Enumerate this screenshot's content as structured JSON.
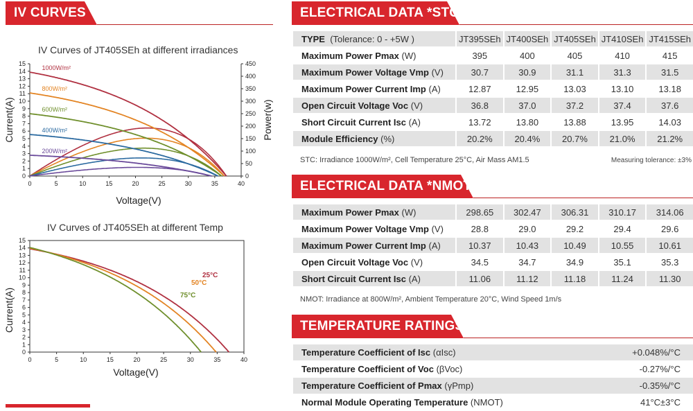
{
  "sections": {
    "iv_curves": "IV CURVES",
    "stc": "ELECTRICAL DATA *STC",
    "nmot": "ELECTRICAL DATA *NMOT",
    "temp": "TEMPERATURE RATINGS"
  },
  "colors": {
    "banner": "#d8262d",
    "row_shade": "#e2e2e2",
    "c1000": "#b03040",
    "c800": "#e38423",
    "c600": "#6f8f2c",
    "c400": "#2b6aa0",
    "c200": "#6a4a9a",
    "t25": "#b03040",
    "t50": "#e38423",
    "t75": "#6f8f2c"
  },
  "chart_data": [
    {
      "type": "line",
      "title": "IV Curves of JT405SEh at different irradiances",
      "xlabel": "Voltage(V)",
      "ylabel": "Current(A)",
      "y2label": "Power(w)",
      "xlim": [
        0,
        40
      ],
      "ylim": [
        0,
        15
      ],
      "y2lim": [
        0,
        450
      ],
      "xticks": [
        "0",
        "5",
        "10",
        "15",
        "20",
        "25",
        "30",
        "35",
        "40"
      ],
      "yticks": [
        "0",
        "1",
        "2",
        "3",
        "4",
        "5",
        "6",
        "7",
        "8",
        "9",
        "10",
        "11",
        "12",
        "13",
        "14",
        "15"
      ],
      "y2ticks": [
        "0",
        "50",
        "100",
        "150",
        "200",
        "250",
        "300",
        "350",
        "400",
        "450"
      ],
      "series": [
        {
          "name": "1000W/m²",
          "isc": 13.88,
          "voc": 37.2,
          "vmp": 31.1,
          "imp": 13.03,
          "pmax": 405,
          "color_key": "c1000"
        },
        {
          "name": "800W/m²",
          "isc": 11.1,
          "voc": 36.8,
          "vmp": 30.9,
          "imp": 10.45,
          "pmax": 323,
          "color_key": "c800"
        },
        {
          "name": "600W/m²",
          "isc": 8.33,
          "voc": 36.3,
          "vmp": 30.6,
          "imp": 7.85,
          "pmax": 240,
          "color_key": "c600"
        },
        {
          "name": "400W/m²",
          "isc": 5.55,
          "voc": 35.6,
          "vmp": 30.2,
          "imp": 5.23,
          "pmax": 158,
          "color_key": "c400"
        },
        {
          "name": "200W/m²",
          "isc": 2.78,
          "voc": 34.4,
          "vmp": 29.3,
          "imp": 2.62,
          "pmax": 77,
          "color_key": "c200"
        }
      ]
    },
    {
      "type": "line",
      "title": "IV Curves of JT405SEh at different Temp",
      "xlabel": "Voltage(V)",
      "ylabel": "Current(A)",
      "xlim": [
        0,
        40
      ],
      "ylim": [
        0,
        15
      ],
      "xticks": [
        "0",
        "5",
        "10",
        "15",
        "20",
        "25",
        "30",
        "35",
        "40"
      ],
      "yticks": [
        "0",
        "1",
        "2",
        "3",
        "4",
        "5",
        "6",
        "7",
        "8",
        "9",
        "10",
        "11",
        "12",
        "13",
        "14",
        "15"
      ],
      "series": [
        {
          "name": "25°C",
          "isc": 13.88,
          "voc": 37.2,
          "knee": 31.0,
          "color_key": "t25"
        },
        {
          "name": "50°C",
          "isc": 13.97,
          "voc": 34.8,
          "knee": 28.5,
          "color_key": "t50"
        },
        {
          "name": "75°C",
          "isc": 14.06,
          "voc": 32.0,
          "knee": 25.5,
          "color_key": "t75"
        }
      ]
    }
  ],
  "stc_table": {
    "header": {
      "label": "TYPE",
      "unit": "(Tolerance: 0 - +5W )",
      "models": [
        "JT395SEh",
        "JT400SEh",
        "JT405SEh",
        "JT410SEh",
        "JT415SEh"
      ]
    },
    "rows": [
      {
        "label": "Maximum Power Pmax",
        "unit": "(W)",
        "values": [
          "395",
          "400",
          "405",
          "410",
          "415"
        ]
      },
      {
        "label": "Maximum Power Voltage Vmp",
        "unit": "(V)",
        "values": [
          "30.7",
          "30.9",
          "31.1",
          "31.3",
          "31.5"
        ]
      },
      {
        "label": "Maximum Power Current Imp",
        "unit": "(A)",
        "values": [
          "12.87",
          "12.95",
          "13.03",
          "13.10",
          "13.18"
        ]
      },
      {
        "label": "Open Circuit Voltage Voc",
        "unit": "(V)",
        "values": [
          "36.8",
          "37.0",
          "37.2",
          "37.4",
          "37.6"
        ]
      },
      {
        "label": "Short Circuit Current Isc",
        "unit": "(A)",
        "values": [
          "13.72",
          "13.80",
          "13.88",
          "13.95",
          "14.03"
        ]
      },
      {
        "label": "Module Efficiency",
        "unit": "(%)",
        "values": [
          "20.2%",
          "20.4%",
          "20.7%",
          "21.0%",
          "21.2%"
        ]
      }
    ],
    "note": "STC: Irradiance 1000W/m², Cell Temperature 25°C, Air Mass AM1.5",
    "note_right": "Measuring tolerance: ±3%"
  },
  "nmot_table": {
    "rows": [
      {
        "label": "Maximum Power  Pmax",
        "unit": "(W)",
        "values": [
          "298.65",
          "302.47",
          "306.31",
          "310.17",
          "314.06"
        ]
      },
      {
        "label": "Maximum Power Voltage  Vmp",
        "unit": "(V)",
        "values": [
          "28.8",
          "29.0",
          "29.2",
          "29.4",
          "29.6"
        ]
      },
      {
        "label": "Maximum Power Current  Imp",
        "unit": "(A)",
        "values": [
          "10.37",
          "10.43",
          "10.49",
          "10.55",
          "10.61"
        ]
      },
      {
        "label": "Open Circuit Voltage  Voc",
        "unit": "(V)",
        "values": [
          "34.5",
          "34.7",
          "34.9",
          "35.1",
          "35.3"
        ]
      },
      {
        "label": "Short Circuit Current  Isc",
        "unit": "(A)",
        "values": [
          "11.06",
          "11.12",
          "11.18",
          "11.24",
          "11.30"
        ]
      }
    ],
    "note": "NMOT: Irradiance at 800W/m², Ambient Temperature 20°C, Wind Speed 1m/s"
  },
  "temp_table": {
    "rows": [
      {
        "label": "Temperature Coefficient of Isc",
        "unit": "(αIsc)",
        "value": "+0.048%/°C"
      },
      {
        "label": "Temperature Coefficient of Voc",
        "unit": "(βVoc)",
        "value": "-0.27%/°C"
      },
      {
        "label": "Temperature Coefficient of Pmax",
        "unit": "(γPmp)",
        "value": "-0.35%/°C"
      },
      {
        "label": "Normal Module Operating Temperature",
        "unit": "(NMOT)",
        "value": "41°C±3°C"
      }
    ]
  }
}
